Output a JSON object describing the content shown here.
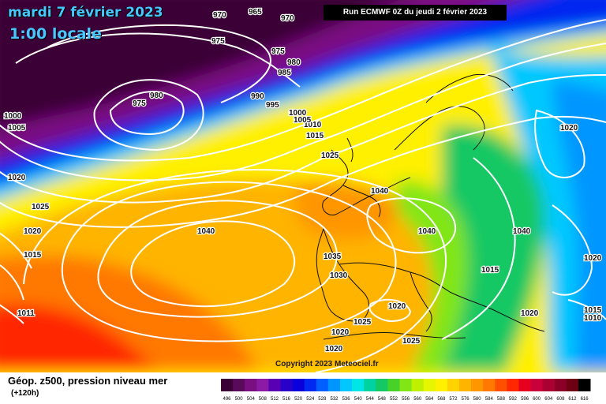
{
  "header": {
    "date_text": "mardi 7 février 2023",
    "local_time": "1:00 locale",
    "run_info": "Run ECMWF 0Z du jeudi 2 février 2023"
  },
  "copyright": "Copyright 2023 Meteociel.fr",
  "footer": {
    "title": "Géop. z500, pression niveau mer",
    "lead": "(+120h)"
  },
  "legend": {
    "values": [
      "496",
      "500",
      "504",
      "508",
      "512",
      "516",
      "520",
      "524",
      "528",
      "532",
      "536",
      "540",
      "544",
      "548",
      "552",
      "556",
      "560",
      "564",
      "568",
      "572",
      "576",
      "580",
      "584",
      "588",
      "592",
      "596",
      "600",
      "604",
      "608",
      "612",
      "616"
    ],
    "colors": [
      "#3b0036",
      "#5a0a5a",
      "#7a0f82",
      "#8c1aa6",
      "#5a00b4",
      "#2800c8",
      "#0a00dc",
      "#0028f0",
      "#0060ff",
      "#0096ff",
      "#00c8ff",
      "#00e6e6",
      "#00d2a0",
      "#14c864",
      "#46d228",
      "#82e614",
      "#bef000",
      "#e6f500",
      "#fff000",
      "#ffd200",
      "#ffb400",
      "#ff9600",
      "#ff7800",
      "#ff5000",
      "#ff2800",
      "#e6001e",
      "#c8003c",
      "#aa0032",
      "#8c0028",
      "#6e0014",
      "#000000"
    ]
  },
  "isobars": [
    {
      "text": "1040"
    },
    {
      "text": "1040"
    },
    {
      "text": "1040"
    },
    {
      "text": "1040"
    },
    {
      "text": "1035"
    },
    {
      "text": "1030"
    },
    {
      "text": "1025"
    },
    {
      "text": "1025"
    },
    {
      "text": "1025"
    },
    {
      "text": "1020"
    },
    {
      "text": "1020"
    },
    {
      "text": "1020"
    },
    {
      "text": "1020"
    },
    {
      "text": "1020"
    },
    {
      "text": "1020"
    },
    {
      "text": "1020"
    },
    {
      "text": "1015"
    },
    {
      "text": "1015"
    },
    {
      "text": "1015"
    },
    {
      "text": "1010"
    },
    {
      "text": "1010"
    },
    {
      "text": "1011"
    },
    {
      "text": "1005"
    },
    {
      "text": "1005"
    },
    {
      "text": "1000"
    },
    {
      "text": "1000"
    },
    {
      "text": "995"
    },
    {
      "text": "990"
    },
    {
      "text": "985"
    },
    {
      "text": "980"
    },
    {
      "text": "980"
    },
    {
      "text": "975"
    },
    {
      "text": "975"
    },
    {
      "text": "975"
    },
    {
      "text": "970"
    },
    {
      "text": "970"
    },
    {
      "text": "965"
    },
    {
      "text": "1025"
    },
    {
      "text": "1020"
    },
    {
      "text": "1015"
    }
  ]
}
